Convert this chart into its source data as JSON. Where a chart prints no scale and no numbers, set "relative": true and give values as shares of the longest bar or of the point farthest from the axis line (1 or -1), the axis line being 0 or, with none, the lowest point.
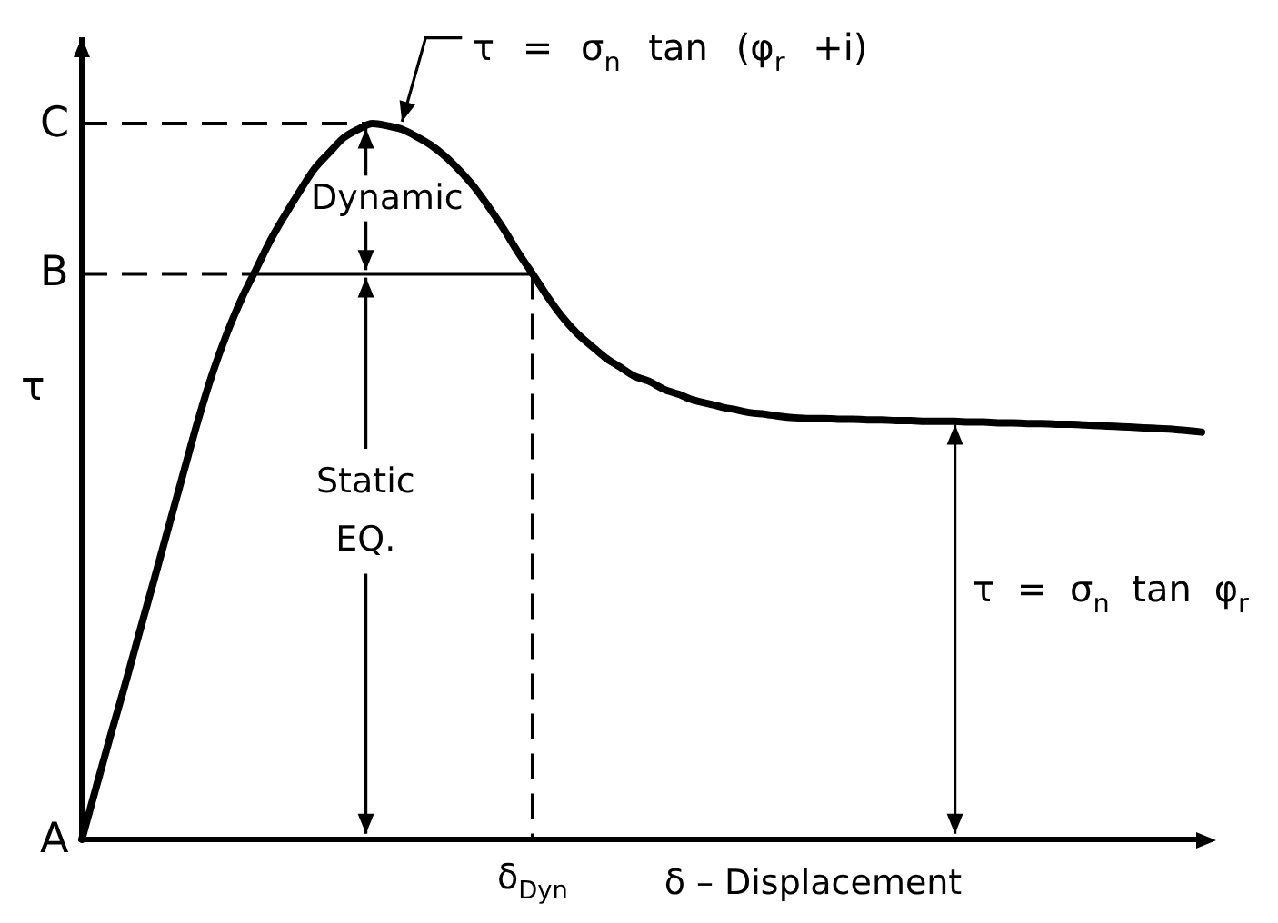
{
  "chart_data": {
    "type": "line",
    "relative": true,
    "xlabel": "δ – Displacement",
    "ylabel": "τ",
    "categories": [
      null,
      null,
      null,
      null,
      null,
      null,
      null,
      null,
      null,
      null,
      null,
      null,
      null,
      null,
      null,
      null,
      null,
      null,
      null,
      null,
      null,
      null,
      null,
      null,
      null,
      null,
      null,
      null,
      null,
      null,
      null,
      null,
      null,
      null,
      null,
      null,
      null,
      null,
      null,
      null,
      null,
      null,
      null,
      null,
      null,
      null,
      null,
      null,
      null,
      null,
      null,
      null,
      null,
      null,
      null,
      null,
      null,
      null,
      null,
      null,
      null,
      null,
      null,
      null,
      null,
      null,
      null,
      null,
      null,
      null,
      null,
      null,
      null,
      null,
      null,
      null,
      null,
      null
    ],
    "series": [
      {
        "color": "#000000",
        "values": [
          0,
          0.074,
          0.147,
          0.218,
          0.292,
          0.365,
          0.439,
          0.513,
          0.586,
          0.652,
          0.708,
          0.756,
          0.797,
          0.838,
          0.873,
          0.906,
          0.937,
          0.959,
          0.98,
          0.992,
          1,
          0.997,
          0.992,
          0.982,
          0.97,
          0.954,
          0.934,
          0.911,
          0.883,
          0.853,
          0.82,
          0.79,
          0.759,
          0.731,
          0.708,
          0.69,
          0.673,
          0.66,
          0.647,
          0.64,
          0.629,
          0.622,
          0.614,
          0.609,
          0.604,
          0.6,
          0.596,
          0.594,
          0.591,
          0.589,
          0.588,
          0.588,
          0.587,
          0.587,
          0.586,
          0.586,
          0.585,
          0.585,
          0.584,
          0.584,
          0.584,
          0.583,
          0.583,
          0.582,
          0.582,
          0.581,
          0.581,
          0.58,
          0.58,
          0.579,
          0.578,
          0.577,
          0.576,
          0.575,
          0.574,
          0.573,
          0.571,
          0.569
        ]
      }
    ],
    "ref_lines": [
      {
        "axis": "y",
        "value": 1,
        "label": "C",
        "line_style": "dashed",
        "color": "#000000"
      },
      {
        "axis": "y",
        "value": 0.79,
        "label": "B",
        "line_style": "dashed",
        "color": "#000000"
      }
    ],
    "annotations": [
      "A",
      "τ = σ$_{n}$ tan (φ$_{r}$ +i)",
      "Dynamic",
      "Static EQ.",
      "τ = σ$_{n}$ tan φ$_{r}$",
      "δ$_{Dyn}$"
    ],
    "marker": "none"
  }
}
